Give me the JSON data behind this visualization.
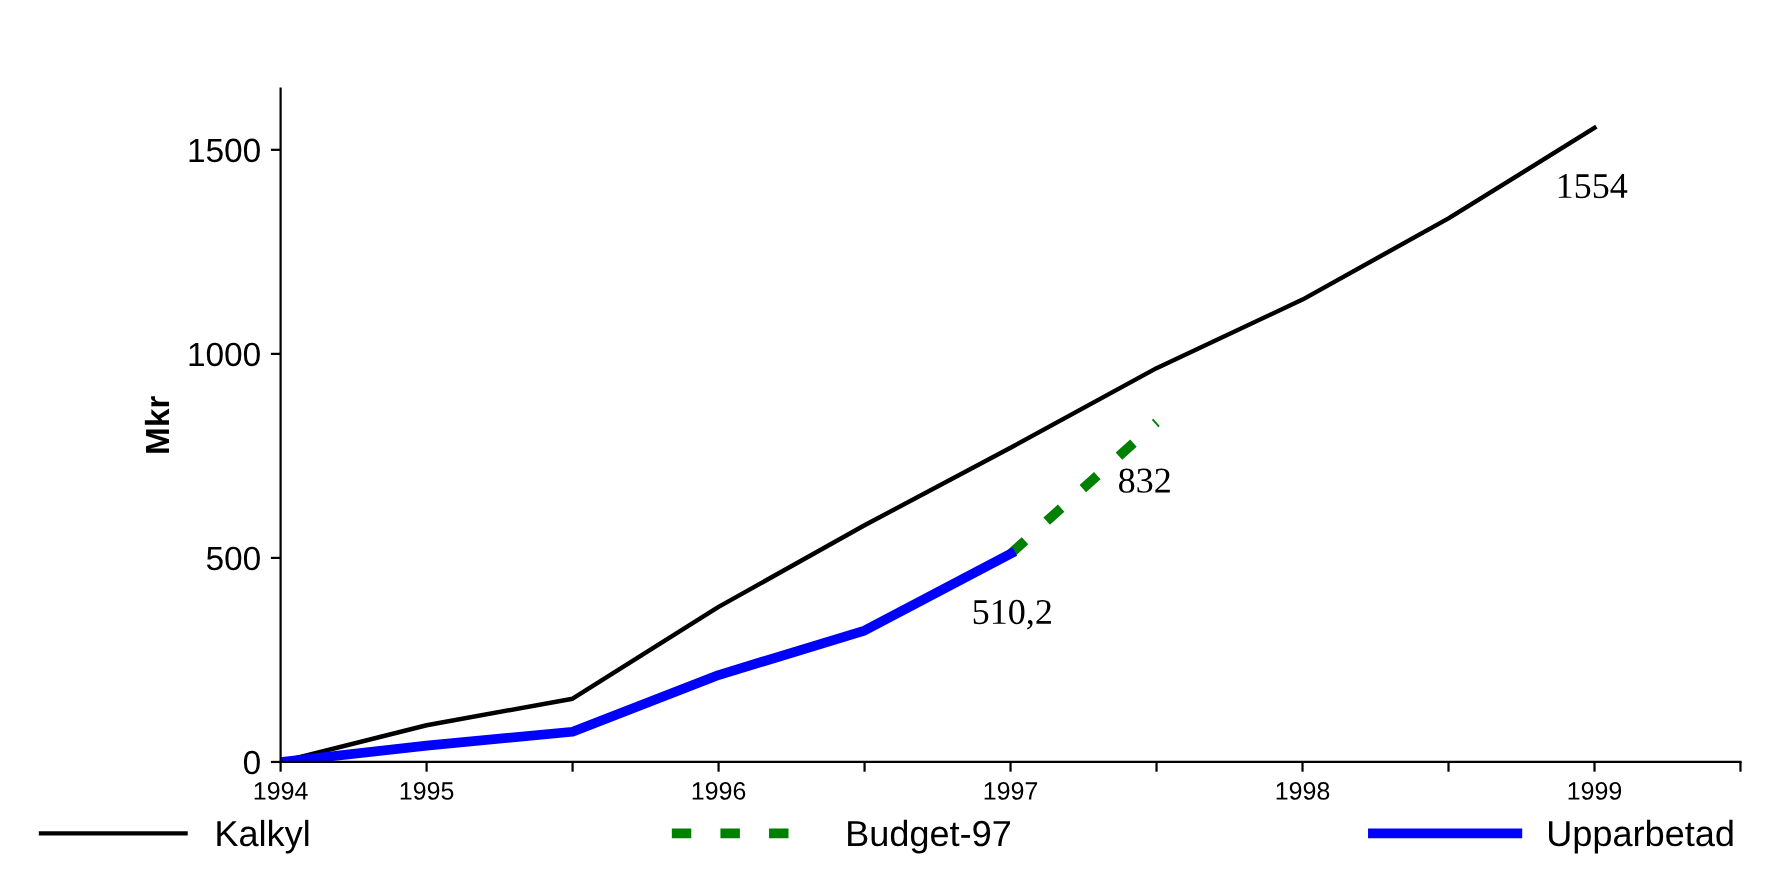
{
  "chart_data": {
    "type": "line",
    "ylabel": "Mkr",
    "categories": [
      "1994",
      "1995",
      null,
      "1996",
      null,
      "1997",
      null,
      "1998",
      null,
      "1999"
    ],
    "series": [
      {
        "name": "Kalkyl",
        "color": "#000000",
        "line_style": "solid",
        "values": [
          0,
          90,
          155,
          380,
          580,
          770,
          965,
          1133,
          1332,
          1554
        ],
        "value_labels": [
          null,
          null,
          null,
          null,
          null,
          null,
          null,
          null,
          null,
          "1554"
        ]
      },
      {
        "name": "Budget-97",
        "color": "#008000",
        "line_style": "dashed",
        "values": [
          null,
          null,
          null,
          null,
          null,
          510.2,
          832,
          null,
          null,
          null
        ],
        "value_labels": [
          null,
          null,
          null,
          null,
          null,
          null,
          "832",
          null,
          null,
          null
        ]
      },
      {
        "name": "Upparbetad",
        "color": "#0000ff",
        "line_style": "solid",
        "values": [
          0,
          40,
          74,
          213,
          322,
          510.2,
          null,
          null,
          null,
          null
        ],
        "value_labels": [
          null,
          null,
          null,
          null,
          null,
          "510,2",
          null,
          null,
          null,
          null
        ]
      }
    ],
    "ylim": [
      0,
      1650
    ],
    "yticks": [
      0,
      500,
      1000,
      1500
    ],
    "grid": false,
    "legend": "bottom",
    "marker": "none"
  }
}
